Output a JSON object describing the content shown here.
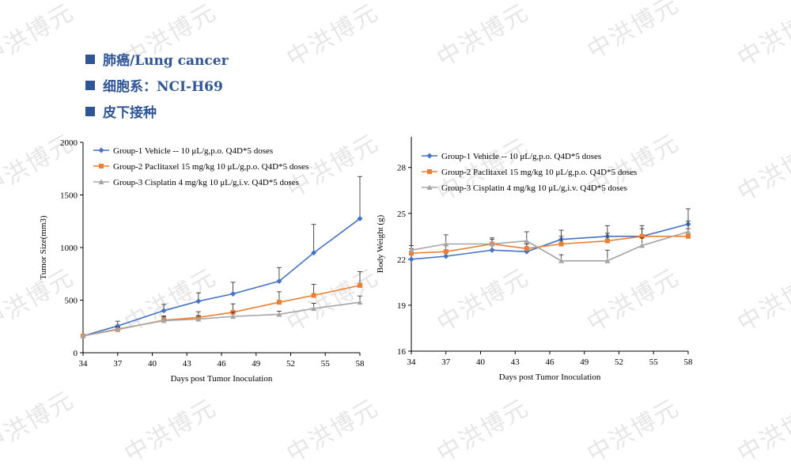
{
  "watermark": {
    "text": "中洪博元"
  },
  "bullets": {
    "color": "#2f5597",
    "items": [
      {
        "text": "肺癌/Lung cancer"
      },
      {
        "text": "细胞系：NCI-H69"
      },
      {
        "text": "皮下接种"
      }
    ]
  },
  "chart_data": [
    {
      "type": "line",
      "title": "",
      "xlabel": "Days post Tumor Inoculation",
      "ylabel": "Tumor Size(mm3)",
      "xlim": [
        34,
        58
      ],
      "ylim": [
        0,
        2000
      ],
      "xticks": [
        34,
        37,
        40,
        43,
        46,
        49,
        52,
        55,
        58
      ],
      "yticks": [
        0,
        500,
        1000,
        1500,
        2000
      ],
      "grid": false,
      "legend": "top-left",
      "series": [
        {
          "name": "Group-1 Vehicle -- 10 μL/g,p.o. Q4D*5 doses",
          "color": "#4472c4",
          "marker": "diamond",
          "x": [
            34,
            37,
            41,
            44,
            47,
            51,
            54,
            58
          ],
          "y": [
            160,
            255,
            400,
            490,
            560,
            680,
            950,
            1275
          ],
          "err": [
            0,
            45,
            60,
            80,
            110,
            130,
            270,
            400
          ]
        },
        {
          "name": "Group-2 Paclitaxel 15 mg/kg 10 μL/g,p.o. Q4D*5 doses",
          "color": "#ed7d31",
          "marker": "square",
          "x": [
            34,
            37,
            41,
            44,
            47,
            51,
            54,
            58
          ],
          "y": [
            160,
            220,
            310,
            335,
            385,
            480,
            545,
            640
          ],
          "err": [
            0,
            25,
            40,
            55,
            80,
            100,
            105,
            130
          ]
        },
        {
          "name": "Group-3 Cisplatin 4 mg/kg 10 μL/g,i.v. Q4D*5 doses",
          "color": "#a5a5a5",
          "marker": "triangle",
          "x": [
            34,
            37,
            41,
            44,
            47,
            51,
            54,
            58
          ],
          "y": [
            160,
            225,
            305,
            320,
            345,
            365,
            420,
            480
          ],
          "err": [
            0,
            20,
            35,
            30,
            40,
            30,
            50,
            60
          ]
        }
      ]
    },
    {
      "type": "line",
      "title": "",
      "xlabel": "Days post Tumor Inoculation",
      "ylabel": "Body Weight (g)",
      "xlim": [
        34,
        58
      ],
      "ylim": [
        16,
        30
      ],
      "xticks": [
        34,
        37,
        40,
        43,
        46,
        49,
        52,
        55,
        58
      ],
      "yticks": [
        16,
        19,
        22,
        25,
        28
      ],
      "grid": false,
      "legend": "top-left",
      "series": [
        {
          "name": "Group-1 Vehicle -- 10 μL/g,p.o. Q4D*5 doses",
          "color": "#4472c4",
          "marker": "diamond",
          "x": [
            34,
            37,
            41,
            44,
            47,
            51,
            54,
            58
          ],
          "y": [
            22.0,
            22.2,
            22.6,
            22.5,
            23.3,
            23.5,
            23.5,
            24.3
          ],
          "err": [
            0.4,
            0.4,
            0.4,
            0.5,
            0.6,
            0.7,
            0.7,
            1.0
          ]
        },
        {
          "name": "Group-2 Paclitaxel 15 mg/kg 10 μL/g,p.o. Q4D*5 doses",
          "color": "#ed7d31",
          "marker": "square",
          "x": [
            34,
            37,
            41,
            44,
            47,
            51,
            54,
            58
          ],
          "y": [
            22.4,
            22.5,
            23.0,
            22.7,
            23.0,
            23.2,
            23.5,
            23.5
          ],
          "err": [
            0.3,
            0.4,
            0.3,
            0.4,
            0.5,
            0.5,
            0.5,
            0.5
          ]
        },
        {
          "name": "Group-3 Cisplatin 4 mg/kg 10 μL/g,i.v. Q4D*5 doses",
          "color": "#a5a5a5",
          "marker": "triangle",
          "x": [
            34,
            37,
            41,
            44,
            47,
            51,
            54,
            58
          ],
          "y": [
            22.6,
            23.0,
            23.0,
            23.2,
            21.9,
            21.9,
            22.9,
            23.8
          ],
          "err": [
            0.3,
            0.6,
            0.4,
            0.6,
            0.4,
            0.7,
            0.5,
            0.7
          ]
        }
      ]
    }
  ]
}
